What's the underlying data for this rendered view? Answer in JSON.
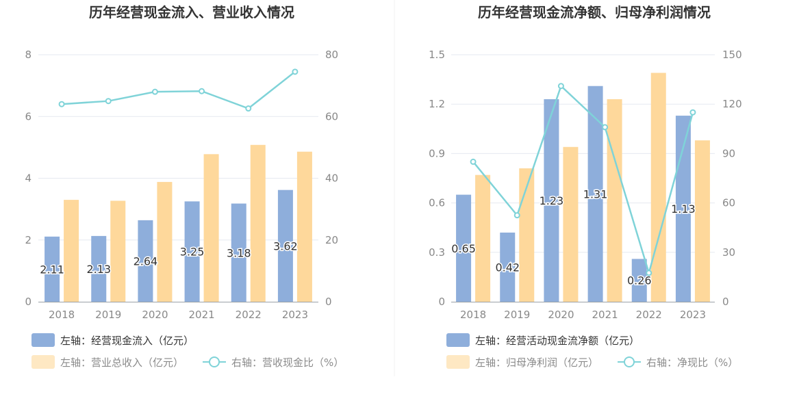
{
  "chart_data": [
    {
      "type": "bar",
      "title": "历年经营现金流入、营业收入情况",
      "categories": [
        "2018",
        "2019",
        "2020",
        "2021",
        "2022",
        "2023"
      ],
      "left_axis": {
        "ticks": [
          "0",
          "2",
          "4",
          "6",
          "8"
        ],
        "ylim": [
          0,
          8
        ]
      },
      "right_axis": {
        "ticks": [
          "0",
          "20",
          "40",
          "60",
          "80"
        ],
        "ylim": [
          0,
          80
        ]
      },
      "series": [
        {
          "name": "左轴：经营现金流入（亿元）",
          "type": "bar",
          "axis": "left",
          "color": "#8eaedb",
          "values": [
            2.11,
            2.13,
            2.64,
            3.25,
            3.18,
            3.62
          ],
          "labels": [
            "2.11",
            "2.13",
            "2.64",
            "3.25",
            "3.18",
            "3.62"
          ]
        },
        {
          "name": "左轴：营业总收入（亿元）",
          "type": "bar",
          "axis": "left",
          "color": "#fed89b",
          "values": [
            3.3,
            3.27,
            3.88,
            4.78,
            5.08,
            4.86
          ]
        },
        {
          "name": "右轴：营收现金比（%）",
          "type": "line",
          "axis": "right",
          "color": "#7fd3d8",
          "values": [
            64,
            65,
            68,
            68.2,
            62.6,
            74.5
          ]
        }
      ]
    },
    {
      "type": "bar",
      "title": "历年经营现金流净额、归母净利润情况",
      "categories": [
        "2018",
        "2019",
        "2020",
        "2021",
        "2022",
        "2023"
      ],
      "left_axis": {
        "ticks": [
          "0",
          "0.3",
          "0.6",
          "0.9",
          "1.2",
          "1.5"
        ],
        "ylim": [
          0,
          1.5
        ]
      },
      "right_axis": {
        "ticks": [
          "0",
          "30",
          "60",
          "90",
          "120",
          "150"
        ],
        "ylim": [
          0,
          150
        ]
      },
      "series": [
        {
          "name": "左轴：经营活动现金流净额（亿元）",
          "type": "bar",
          "axis": "left",
          "color": "#8eaedb",
          "values": [
            0.65,
            0.42,
            1.23,
            1.31,
            0.26,
            1.13
          ],
          "labels": [
            "0.65",
            "0.42",
            "1.23",
            "1.31",
            "0.26",
            "1.13"
          ]
        },
        {
          "name": "左轴：归母净利润（亿元）",
          "type": "bar",
          "axis": "left",
          "color": "#fed89b",
          "values": [
            0.77,
            0.81,
            0.94,
            1.23,
            1.39,
            0.98
          ]
        },
        {
          "name": "右轴：净现比（%）",
          "type": "line",
          "axis": "right",
          "color": "#7fd3d8",
          "values": [
            85,
            52.5,
            131,
            106,
            17.5,
            115
          ]
        }
      ]
    }
  ]
}
